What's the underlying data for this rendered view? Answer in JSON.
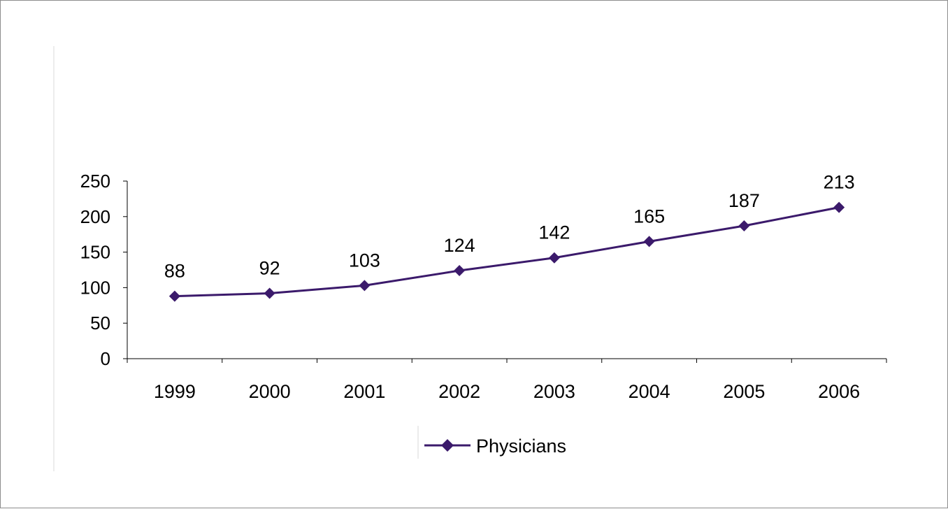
{
  "colors": {
    "series": "#3b1a6b",
    "axis": "#000000",
    "background": "#ffffff"
  },
  "chart_data": {
    "type": "line",
    "title": "",
    "xlabel": "",
    "ylabel": "",
    "categories": [
      "1999",
      "2000",
      "2001",
      "2002",
      "2003",
      "2004",
      "2005",
      "2006"
    ],
    "series": [
      {
        "name": "Physicians",
        "values": [
          88,
          92,
          103,
          124,
          142,
          165,
          187,
          213
        ],
        "marker": "diamond"
      }
    ],
    "ylim": [
      0,
      250
    ],
    "yticks": [
      "0",
      "50",
      "100",
      "150",
      "200",
      "250"
    ],
    "data_labels": [
      "88",
      "92",
      "103",
      "124",
      "142",
      "165",
      "187",
      "213"
    ],
    "grid": false,
    "legend": "bottom"
  }
}
